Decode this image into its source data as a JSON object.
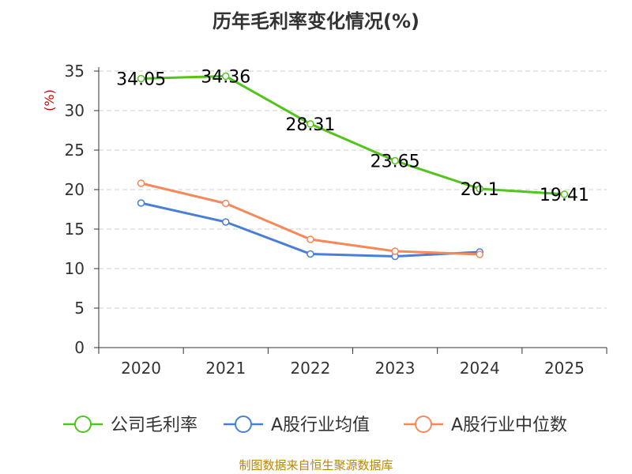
{
  "colors": {
    "gross_margin": "#52c41a",
    "industry_mean": "#4a7fd6",
    "industry_median": "#f5895a",
    "axis": "#333333",
    "grid": "#cccccc",
    "source": "#b8860b",
    "ylabel": "#cc0000"
  },
  "chart_data": {
    "type": "line",
    "title": "历年毛利率变化情况(%)",
    "ylabel": "(%)",
    "xlabel": "",
    "categories": [
      "2020",
      "2021",
      "2022",
      "2023",
      "2024",
      "2025"
    ],
    "ylim": [
      0,
      35
    ],
    "yticks": [
      "0",
      "5",
      "10",
      "15",
      "20",
      "25",
      "30",
      "35"
    ],
    "grid": true,
    "legend_position": "bottom",
    "series": [
      {
        "name": "公司毛利率",
        "key": "gross_margin",
        "values": [
          34.05,
          34.36,
          28.31,
          23.65,
          20.1,
          19.41
        ],
        "labels": [
          "34.05",
          "34.36",
          "28.31",
          "23.65",
          "20.1",
          "19.41"
        ]
      },
      {
        "name": "A股行业均值",
        "key": "industry_mean",
        "values": [
          18.3,
          15.9,
          11.85,
          11.55,
          12.1,
          null
        ]
      },
      {
        "name": "A股行业中位数",
        "key": "industry_median",
        "values": [
          20.8,
          18.25,
          13.7,
          12.2,
          11.8,
          null
        ]
      }
    ],
    "source": "制图数据来自恒生聚源数据库"
  }
}
